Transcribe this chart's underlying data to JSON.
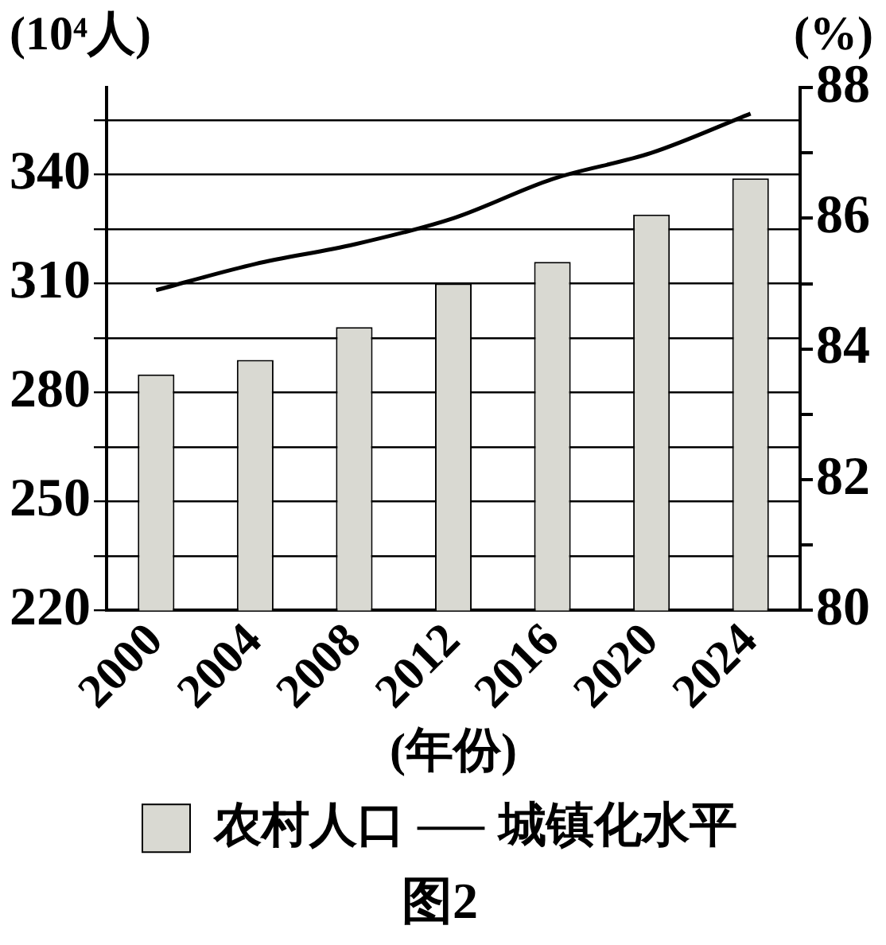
{
  "chart_data": {
    "type": "bar",
    "title": "图2",
    "xlabel": "(年份)",
    "ylabel": "(10⁴人)",
    "y2label": "(%)",
    "categories": [
      "2000",
      "2004",
      "2008",
      "2012",
      "2016",
      "2020",
      "2024"
    ],
    "series": [
      {
        "name": "农村人口",
        "color": "#d9d9d2",
        "values": [
          285,
          289,
          298,
          310,
          316,
          329,
          339
        ]
      },
      {
        "name": "城镇化水平",
        "type": "line",
        "axis": "y2",
        "color": "#000000",
        "values": [
          84.9,
          85.3,
          85.6,
          86.0,
          86.6,
          87.0,
          87.6
        ]
      }
    ],
    "ylim": [
      220,
      364
    ],
    "yticks": [
      220,
      {
        "value": 235,
        "label": null
      },
      250,
      {
        "value": 265,
        "label": null
      },
      280,
      {
        "value": 295,
        "label": null
      },
      310,
      {
        "value": 325,
        "label": null
      },
      340,
      {
        "value": 355,
        "label": null
      }
    ],
    "y2lim": [
      80,
      88
    ],
    "y2ticks": [
      80,
      {
        "value": 81,
        "label": null
      },
      82,
      {
        "value": 83,
        "label": null
      },
      84,
      {
        "value": 85,
        "label": null
      },
      86,
      {
        "value": 87,
        "label": null
      },
      88
    ],
    "grid": "y",
    "legend": "bottom",
    "marker": "none",
    "line_style": "solid"
  }
}
